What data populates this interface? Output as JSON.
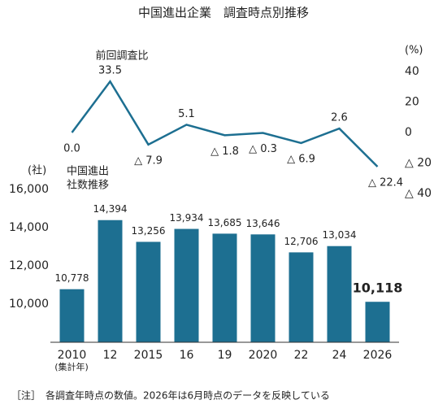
{
  "title": "中国進出企業　調査時点別推移",
  "note": "［注］　各調査年時点の数値。2026年は6月時点のデータを反映している",
  "chart_data": [
    {
      "type": "line",
      "y_label": "前回調査比",
      "y_unit": "(%)",
      "color": "#1d6f91",
      "values": [
        0,
        33.5,
        -7.9,
        5.1,
        -1.8,
        -0.3,
        -6.9,
        2.6,
        -22.4
      ],
      "value_labels": [
        "0.0",
        "33.5",
        "△ 7.9",
        "5.1",
        "△ 1.8",
        "△ 0.3",
        "△ 6.9",
        "2.6",
        "△ 22.4"
      ],
      "ylim": [
        -40,
        40
      ],
      "yticks": [
        40,
        20,
        0,
        {
          "value": -20,
          "label": "△ 20"
        },
        {
          "value": -40,
          "label": "△ 40"
        }
      ]
    },
    {
      "type": "bar",
      "y_unit": "(社)",
      "label_lines": [
        "中国進出",
        "社数推移"
      ],
      "color": "#1d6f91",
      "categories": [
        "2010",
        "12",
        "2015",
        "16",
        "19",
        "2020",
        "22",
        "24",
        "2026"
      ],
      "x_note": "(集計年)",
      "values": [
        10778,
        14394,
        13256,
        13934,
        13685,
        13646,
        12706,
        13034,
        10118
      ],
      "value_labels": [
        "10,778",
        "14,394",
        "13,256",
        "13,934",
        "13,685",
        "13,646",
        "12,706",
        "13,034",
        "10,118"
      ],
      "ylim": [
        8000,
        16000
      ],
      "yticks": [
        {
          "value": 10000,
          "label": "10,000"
        },
        {
          "value": 12000,
          "label": "12,000"
        },
        {
          "value": 14000,
          "label": "14,000"
        },
        {
          "value": 16000,
          "label": "16,000"
        }
      ]
    }
  ]
}
